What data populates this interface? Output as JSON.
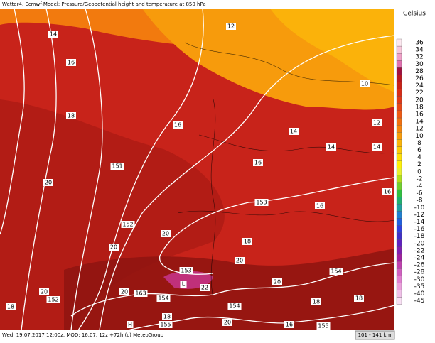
{
  "header": {
    "title": "Wetter4. Ecmwf-Model: Pressure/Geopotential height and temperature at 850 hPa"
  },
  "footer": {
    "left": "Wed. 19.07.2017 12:00z. MOD: 16.07. 12z +72h (c) MeteoGroup",
    "right": "101 - 141 km"
  },
  "legend": {
    "unit": "Celsius",
    "labels": [
      "36",
      "34",
      "32",
      "30",
      "28",
      "26",
      "24",
      "22",
      "20",
      "18",
      "16",
      "14",
      "12",
      "10",
      "8",
      "6",
      "4",
      "2",
      "0",
      "-2",
      "-4",
      "-6",
      "-8",
      "-10",
      "-12",
      "-14",
      "-16",
      "-18",
      "-20",
      "-22",
      "-24",
      "-26",
      "-28",
      "-30",
      "-35",
      "-40",
      "-45"
    ]
  },
  "map": {
    "labels": [
      "14",
      "12",
      "16",
      "10",
      "18",
      "16",
      "14",
      "12",
      "14",
      "14",
      "151",
      "16",
      "20",
      "153",
      "16",
      "16",
      "152",
      "20",
      "20",
      "18",
      "153",
      "20",
      "L",
      "22",
      "154",
      "20",
      "20",
      "163",
      "20",
      "18",
      "152",
      "154",
      "154",
      "18",
      "18",
      "18",
      "H",
      "155",
      "20",
      "16",
      "155"
    ]
  }
}
